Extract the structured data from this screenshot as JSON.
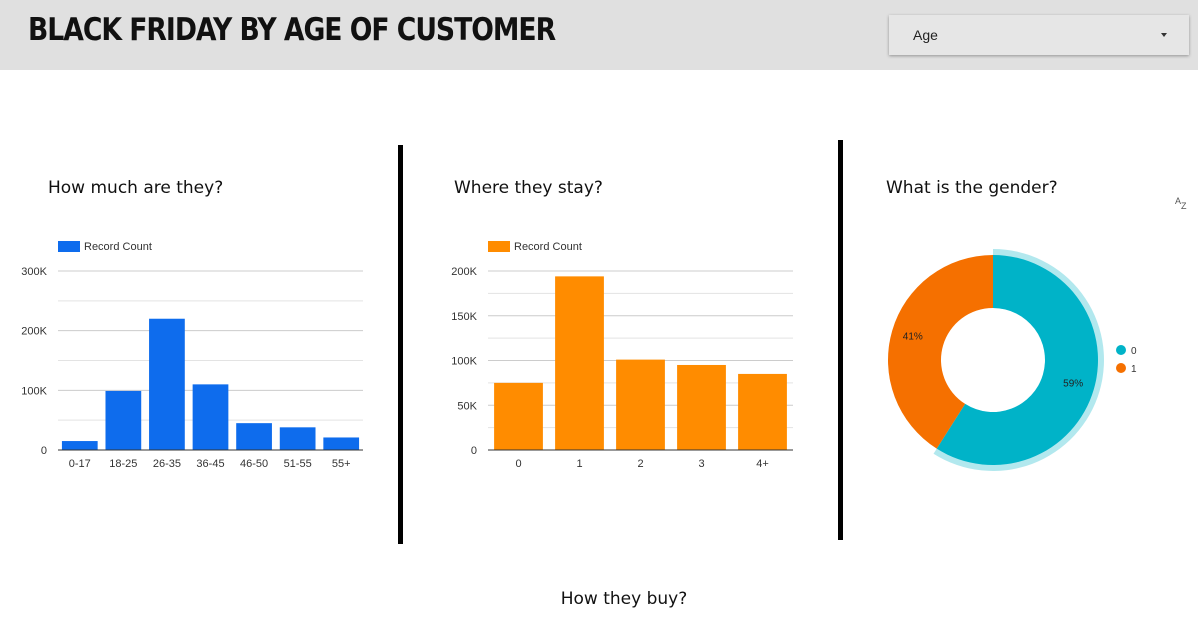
{
  "header": {
    "title": "BLACK FRIDAY BY AGE OF CUSTOMER",
    "filter_label": "Age",
    "filter_icon": "dropdown-caret"
  },
  "charts": {
    "age": {
      "title": "How much are they?"
    },
    "stay": {
      "title": "Where they stay?"
    },
    "gender": {
      "title": "What is the gender?"
    }
  },
  "sort_icon": "sort-az-icon",
  "sort_letters": {
    "a": "A",
    "z": "Z"
  },
  "footer": {
    "title": "How they buy?"
  },
  "colors": {
    "blue": "#0e6ced",
    "orange": "#ff8c00",
    "teal": "#00b3c8",
    "dark_orange": "#f57000",
    "header_bg": "#e0e0e0"
  },
  "chart_data": [
    {
      "type": "bar",
      "title": "How much are they?",
      "legend": {
        "label": "Record Count",
        "position": "top-left"
      },
      "categories": [
        "0-17",
        "18-25",
        "26-35",
        "36-45",
        "46-50",
        "51-55",
        "55+"
      ],
      "values": [
        15000,
        99000,
        220000,
        110000,
        45000,
        38000,
        21000
      ],
      "ylim": [
        0,
        300000
      ],
      "yticks": [
        0,
        100000,
        200000,
        300000
      ],
      "ytick_labels": [
        "0",
        "100K",
        "200K",
        "300K"
      ],
      "color": "#0e6ced",
      "grid": true
    },
    {
      "type": "bar",
      "title": "Where they stay?",
      "legend": {
        "label": "Record Count",
        "position": "top-left"
      },
      "categories": [
        "0",
        "1",
        "2",
        "3",
        "4+"
      ],
      "values": [
        75000,
        194000,
        101000,
        95000,
        85000
      ],
      "ylim": [
        0,
        200000
      ],
      "yticks": [
        0,
        50000,
        100000,
        150000,
        200000
      ],
      "ytick_labels": [
        "0",
        "50K",
        "100K",
        "150K",
        "200K"
      ],
      "color": "#ff8c00",
      "grid": true
    },
    {
      "type": "pie",
      "title": "What is the gender?",
      "donut": true,
      "slices": [
        {
          "label": "0",
          "value": 59,
          "text": "59%",
          "color": "#00b3c8"
        },
        {
          "label": "1",
          "value": 41,
          "text": "41%",
          "color": "#f57000"
        }
      ],
      "highlighted": "0",
      "legend": {
        "position": "right"
      }
    }
  ]
}
